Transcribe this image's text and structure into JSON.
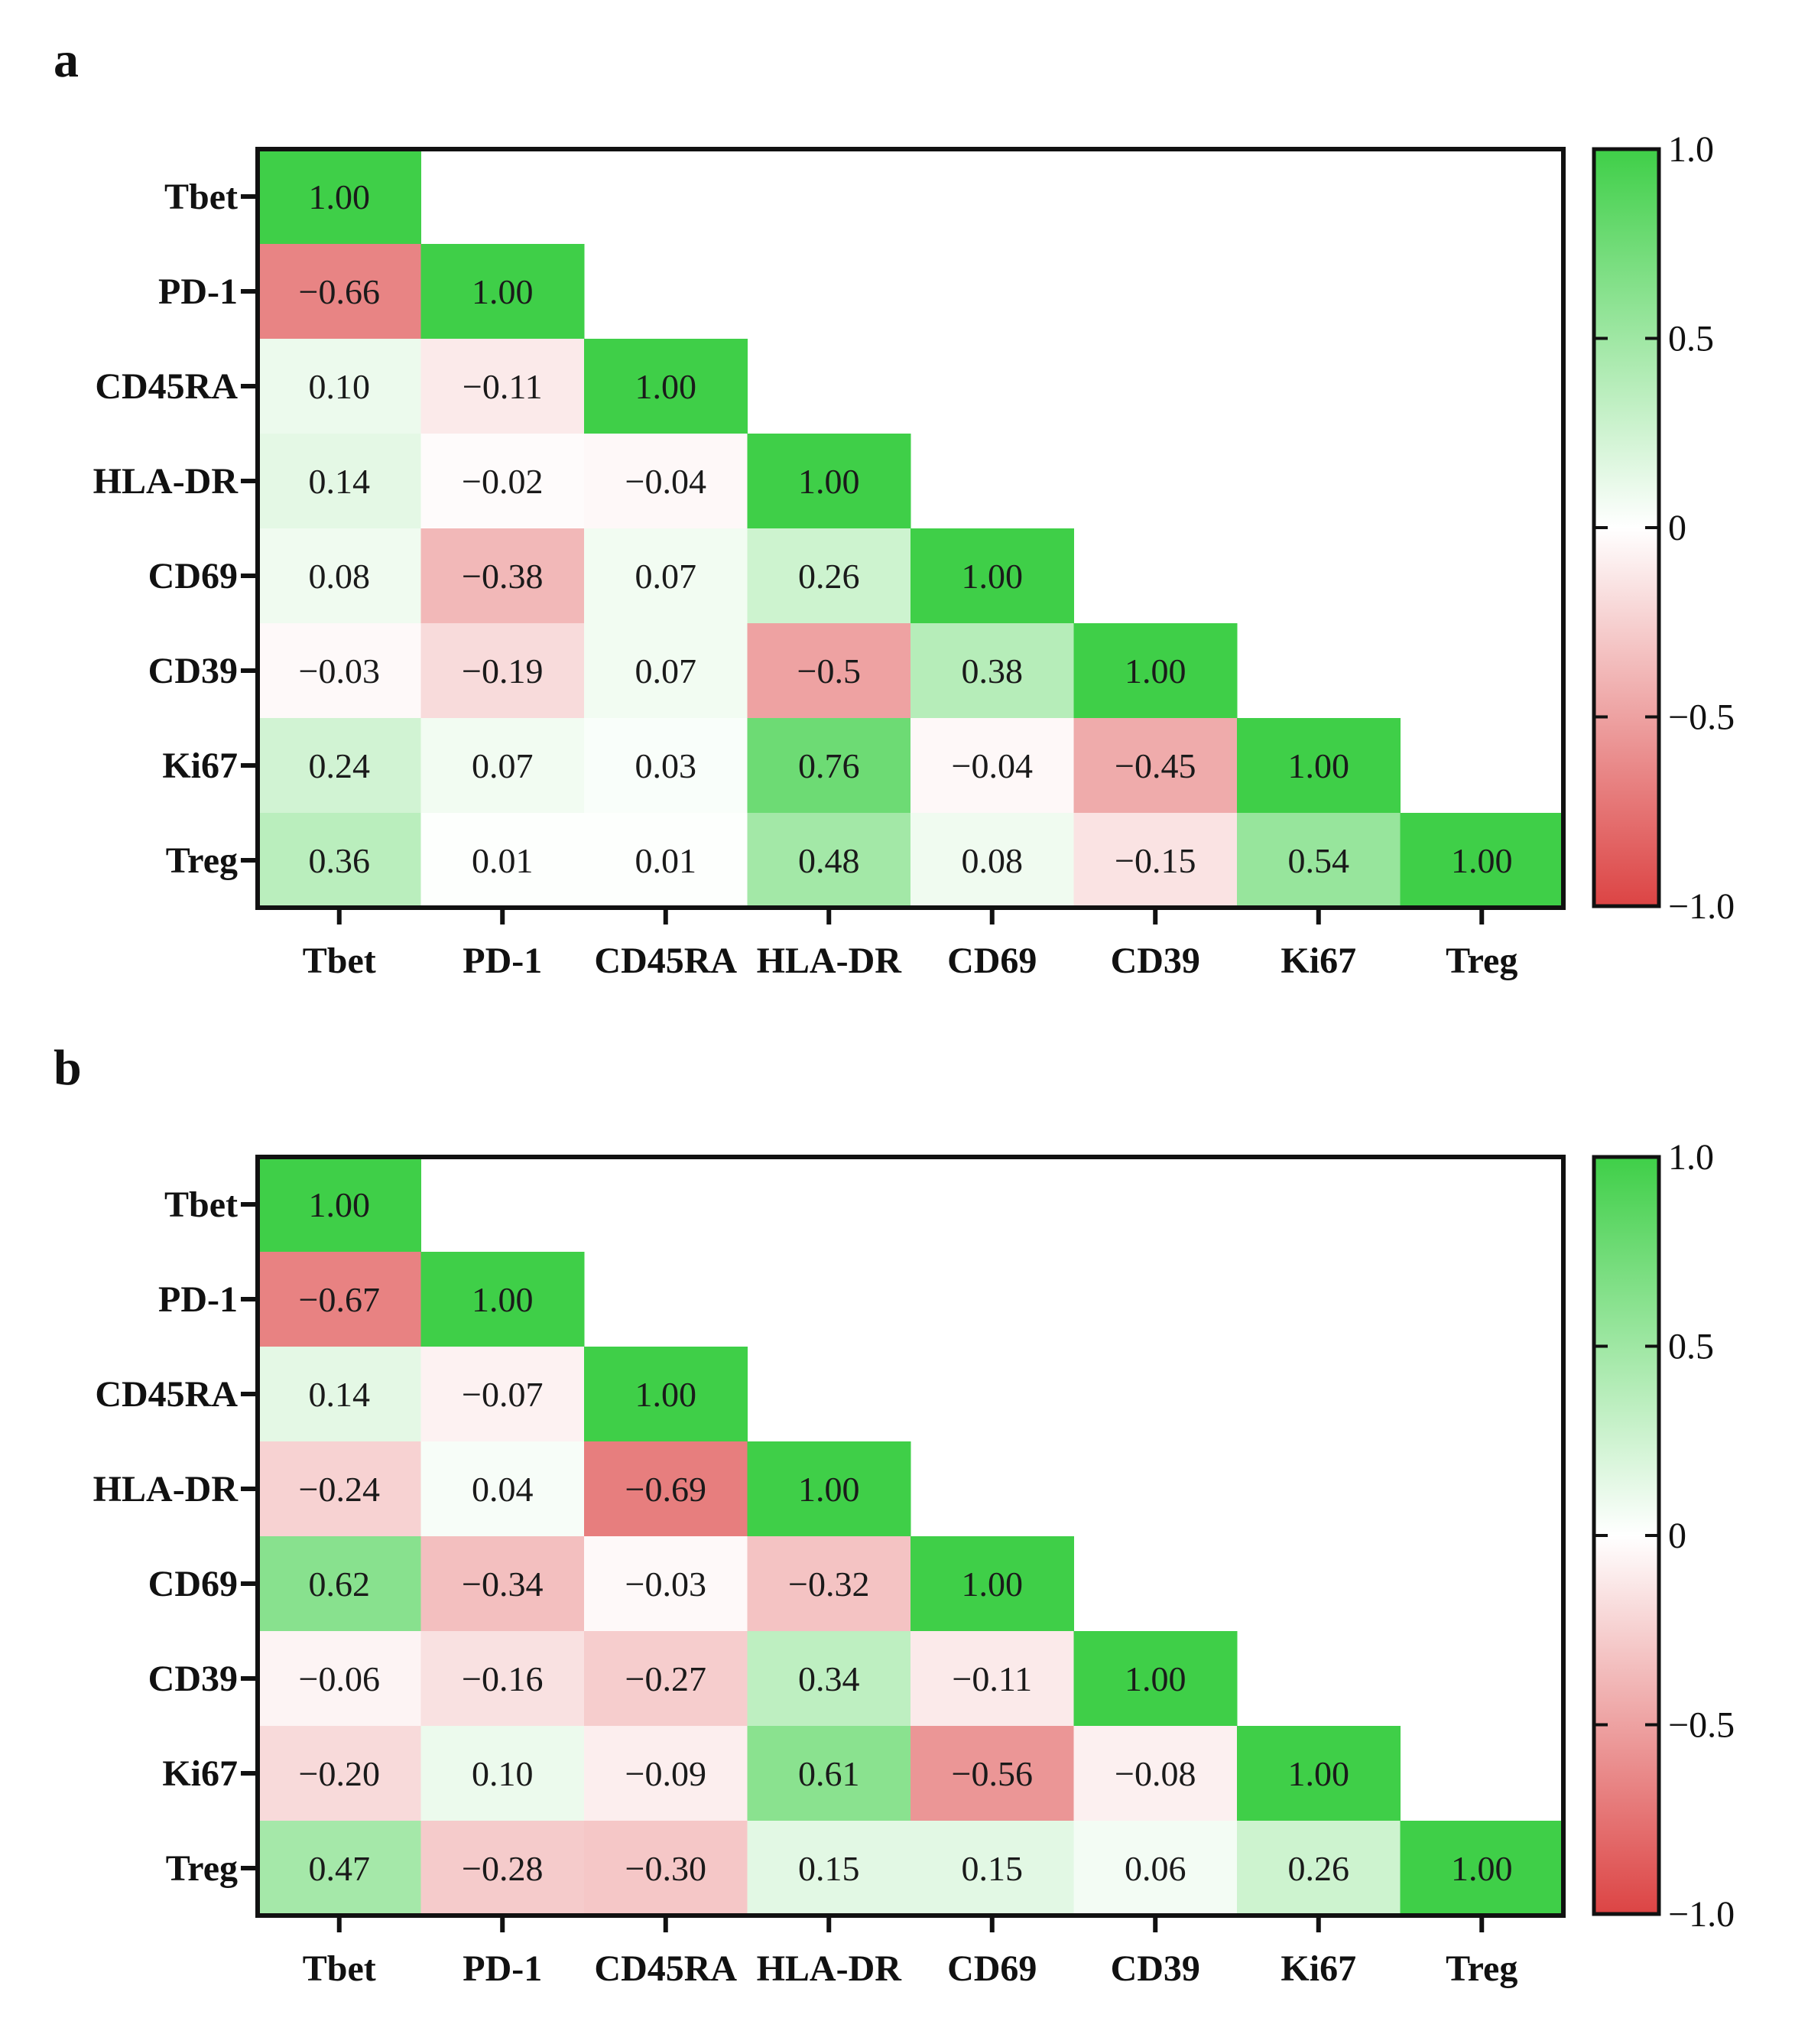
{
  "chart_data": [
    {
      "panel": "a",
      "type": "heatmap",
      "variables": [
        "Tbet",
        "PD-1",
        "CD45RA",
        "HLA-DR",
        "CD69",
        "CD39",
        "Ki67",
        "Treg"
      ],
      "matrix": [
        [
          "1.00"
        ],
        [
          "-0.66",
          "1.00"
        ],
        [
          "0.10",
          "-0.11",
          "1.00"
        ],
        [
          "0.14",
          "-0.02",
          "-0.04",
          "1.00"
        ],
        [
          "0.08",
          "-0.38",
          "0.07",
          "0.26",
          "1.00"
        ],
        [
          "-0.03",
          "-0.19",
          "0.07",
          "-0.5",
          "0.38",
          "1.00"
        ],
        [
          "0.24",
          "0.07",
          "0.03",
          "0.76",
          "-0.04",
          "-0.45",
          "1.00"
        ],
        [
          "0.36",
          "0.01",
          "0.01",
          "0.48",
          "0.08",
          "-0.15",
          "0.54",
          "1.00"
        ]
      ],
      "colorbar": {
        "range": [
          -1.0,
          1.0
        ],
        "ticks": [
          "1.0",
          "0.5",
          "0",
          "-0.5",
          "-1.0"
        ]
      }
    },
    {
      "panel": "b",
      "type": "heatmap",
      "variables": [
        "Tbet",
        "PD-1",
        "CD45RA",
        "HLA-DR",
        "CD69",
        "CD39",
        "Ki67",
        "Treg"
      ],
      "matrix": [
        [
          "1.00"
        ],
        [
          "-0.67",
          "1.00"
        ],
        [
          "0.14",
          "-0.07",
          "1.00"
        ],
        [
          "-0.24",
          "0.04",
          "-0.69",
          "1.00"
        ],
        [
          "0.62",
          "-0.34",
          "-0.03",
          "-0.32",
          "1.00"
        ],
        [
          "-0.06",
          "-0.16",
          "-0.27",
          "0.34",
          "-0.11",
          "1.00"
        ],
        [
          "-0.20",
          "0.10",
          "-0.09",
          "0.61",
          "-0.56",
          "-0.08",
          "1.00"
        ],
        [
          "0.47",
          "-0.28",
          "-0.30",
          "0.15",
          "0.15",
          "0.06",
          "0.26",
          "1.00"
        ]
      ],
      "colorbar": {
        "range": [
          -1.0,
          1.0
        ],
        "ticks": [
          "1.0",
          "0.5",
          "0",
          "-0.5",
          "-1.0"
        ]
      }
    }
  ],
  "colors": {
    "positive": "#3fcf48",
    "negative": "#dc4444",
    "neutral": "#ffffff"
  }
}
